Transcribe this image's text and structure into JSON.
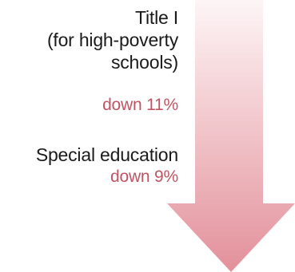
{
  "items": [
    {
      "label_lines": [
        "Title I",
        "(for high-poverty",
        "schools)"
      ],
      "change": "down 11%"
    },
    {
      "label_lines": [
        "Special education"
      ],
      "change": "down 9%"
    }
  ],
  "colors": {
    "arrow_top": "#fdf5f6",
    "arrow_bottom": "#e3909a",
    "change_text": "#c25462",
    "label_text": "#1a1a1a"
  },
  "icons": {
    "arrow": "down-arrow-icon"
  }
}
